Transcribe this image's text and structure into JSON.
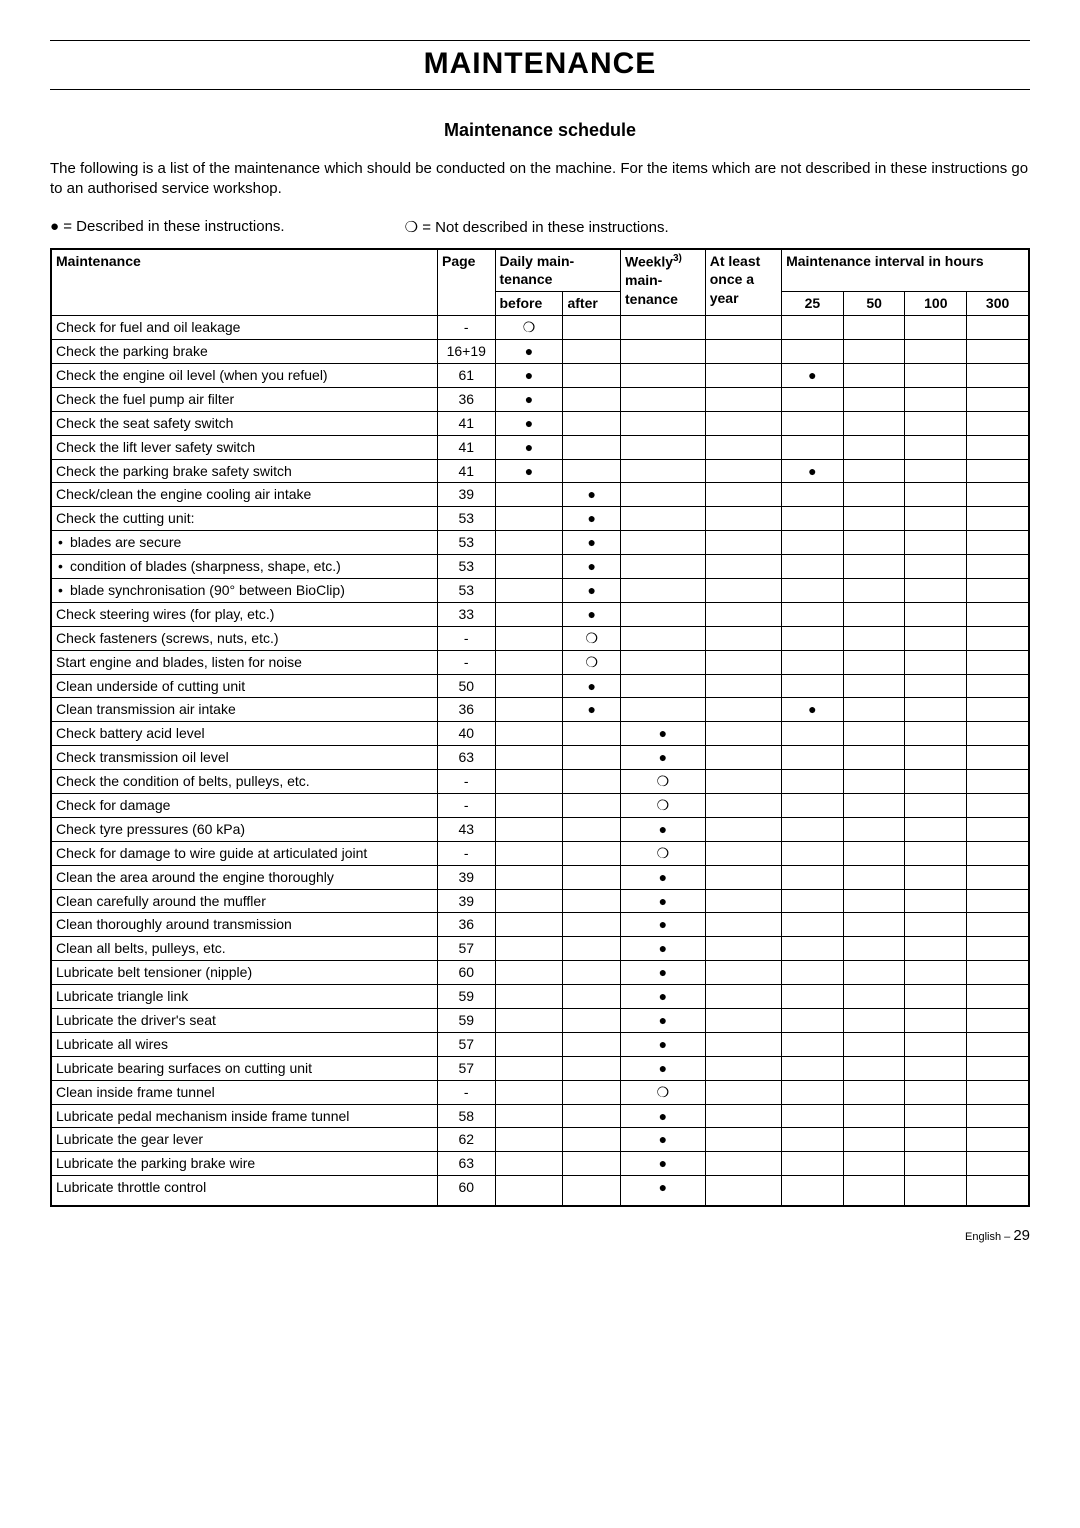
{
  "page": {
    "title": "MAINTENANCE",
    "section_title": "Maintenance schedule",
    "intro": "The following is a list of the maintenance which should be conducted on the machine. For the items which are not described in these instructions go to an authorised service workshop.",
    "legend_described": "= Described in these instructions.",
    "legend_not_described": "= Not described in these instructions.",
    "footer_prefix": "English – ",
    "footer_page": "29"
  },
  "symbols": {
    "filled": "●",
    "hollow": "❍"
  },
  "headers": {
    "maintenance": "Maintenance",
    "page": "Page",
    "daily": "Daily main-\ntenance",
    "before": "before",
    "after": "after",
    "weekly": "Weekly",
    "weekly_sup": "3)",
    "weekly_sub": "main-\ntenance",
    "atleast": "At least once a year",
    "interval": "Maintenance interval in hours",
    "h25": "25",
    "h50": "50",
    "h100": "100",
    "h300": "300"
  },
  "rows": [
    {
      "label": "Check for fuel and oil leakage",
      "page": "-",
      "before": "❍"
    },
    {
      "label": "Check the parking brake",
      "page": "16+19",
      "before": "●"
    },
    {
      "label": "Check the engine oil level (when you refuel)",
      "page": "61",
      "before": "●",
      "h25": "●"
    },
    {
      "label": "Check the fuel pump air filter",
      "page": "36",
      "before": "●"
    },
    {
      "label": "Check the seat safety switch",
      "page": "41",
      "before": "●"
    },
    {
      "label": "Check the lift lever safety switch",
      "page": "41",
      "before": "●"
    },
    {
      "label": "Check the parking brake safety switch",
      "page": "41",
      "before": "●",
      "h25": "●"
    },
    {
      "label": "Check/clean the engine cooling air intake",
      "page": "39",
      "after": "●"
    },
    {
      "label": "Check the cutting unit:",
      "page": "53",
      "after": "●"
    },
    {
      "label": "blades are secure",
      "page": "53",
      "after": "●",
      "bullet": true
    },
    {
      "label": "condition of blades (sharpness, shape, etc.)",
      "page": "53",
      "after": "●",
      "bullet": true
    },
    {
      "label": "blade synchronisation (90° between BioClip)",
      "page": "53",
      "after": "●",
      "bullet": true
    },
    {
      "label": "Check steering wires (for play, etc.)",
      "page": "33",
      "after": "●"
    },
    {
      "label": "Check fasteners (screws, nuts, etc.)",
      "page": "-",
      "after": "❍"
    },
    {
      "label": "Start engine and blades, listen for noise",
      "page": "-",
      "after": "❍"
    },
    {
      "label": "Clean underside of cutting unit",
      "page": "50",
      "after": "●"
    },
    {
      "label": "Clean transmission air intake",
      "page": "36",
      "after": "●",
      "h25": "●"
    },
    {
      "label": "Check battery acid level",
      "page": "40",
      "weekly": "●"
    },
    {
      "label": "Check transmission oil level",
      "page": "63",
      "weekly": "●"
    },
    {
      "label": "Check the condition of belts, pulleys, etc.",
      "page": "-",
      "weekly": "❍"
    },
    {
      "label": "Check for damage",
      "page": "-",
      "weekly": "❍"
    },
    {
      "label": "Check tyre pressures (60 kPa)",
      "page": "43",
      "weekly": "●"
    },
    {
      "label": "Check for damage to wire guide at articulated joint",
      "page": "-",
      "weekly": "❍"
    },
    {
      "label": "Clean the area around the engine thoroughly",
      "page": "39",
      "weekly": "●"
    },
    {
      "label": "Clean carefully around the muffler",
      "page": "39",
      "weekly": "●"
    },
    {
      "label": "Clean thoroughly around transmission",
      "page": "36",
      "weekly": "●"
    },
    {
      "label": "Clean all belts, pulleys, etc.",
      "page": "57",
      "weekly": "●"
    },
    {
      "label": "Lubricate belt tensioner (nipple)",
      "page": "60",
      "weekly": "●"
    },
    {
      "label": "Lubricate triangle link",
      "page": "59",
      "weekly": "●"
    },
    {
      "label": "Lubricate the driver's seat",
      "page": "59",
      "weekly": "●"
    },
    {
      "label": "Lubricate all wires",
      "page": "57",
      "weekly": "●"
    },
    {
      "label": "Lubricate bearing surfaces on cutting unit",
      "page": "57",
      "weekly": "●"
    },
    {
      "label": "Clean inside frame tunnel",
      "page": "-",
      "weekly": "❍"
    },
    {
      "label": "Lubricate pedal mechanism inside frame tunnel",
      "page": "58",
      "weekly": "●"
    },
    {
      "label": "Lubricate the gear lever",
      "page": "62",
      "weekly": "●"
    },
    {
      "label": "Lubricate the parking brake wire",
      "page": "63",
      "weekly": "●"
    },
    {
      "label": "Lubricate throttle control",
      "page": "60",
      "weekly": "●"
    }
  ]
}
